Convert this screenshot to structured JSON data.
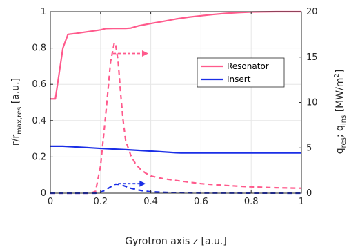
{
  "chart_data": {
    "type": "line",
    "xlabel": "Gyrotron axis z [a.u.]",
    "ylabel_left": {
      "base": "r/r",
      "sub": "max,res",
      "unit": " [a.u.]"
    },
    "ylabel_right": {
      "q1": "q",
      "sub1": "res",
      "sep": "; q",
      "sub2": "ins",
      "unit_pre": " [MW/m",
      "unit_sup": "2",
      "unit_post": "]"
    },
    "xlim": [
      0,
      1
    ],
    "ylim_left": [
      0,
      1
    ],
    "ylim_right": [
      0,
      20
    ],
    "x_ticks": [
      "0",
      "0.2",
      "0.4",
      "0.6",
      "0.8",
      "1"
    ],
    "y_left_ticks": [
      "0",
      "0.2",
      "0.4",
      "0.6",
      "0.8",
      "1"
    ],
    "y_right_ticks": [
      "0",
      "5",
      "10",
      "15",
      "20"
    ],
    "grid": true,
    "legend_position": "top-right",
    "colors": {
      "resonator": "#ff5a8c",
      "insert": "#1a2ee6",
      "grid": "#e6e6e6",
      "axis": "#262626"
    },
    "series": [
      {
        "name": "Resonator",
        "axis": "left",
        "style": "solid",
        "color": "#ff5a8c",
        "x": [
          0,
          0.02,
          0.05,
          0.07,
          0.1,
          0.15,
          0.2,
          0.22,
          0.25,
          0.3,
          0.32,
          0.35,
          0.4,
          0.45,
          0.5,
          0.55,
          0.6,
          0.65,
          0.7,
          0.75,
          0.8,
          0.85,
          0.9,
          0.95,
          1.0
        ],
        "y": [
          0.52,
          0.52,
          0.8,
          0.875,
          0.88,
          0.89,
          0.9,
          0.907,
          0.908,
          0.908,
          0.91,
          0.922,
          0.935,
          0.947,
          0.96,
          0.97,
          0.978,
          0.985,
          0.991,
          0.995,
          0.998,
          0.999,
          1.0,
          1.0,
          1.0
        ]
      },
      {
        "name": "Insert",
        "axis": "left",
        "style": "solid",
        "color": "#1a2ee6",
        "x": [
          0,
          0.05,
          0.1,
          0.2,
          0.3,
          0.4,
          0.5,
          0.52,
          0.6,
          0.8,
          1.0
        ],
        "y": [
          0.259,
          0.259,
          0.255,
          0.247,
          0.24,
          0.232,
          0.223,
          0.222,
          0.222,
          0.222,
          0.222
        ]
      },
      {
        "name": "q_res",
        "axis": "right",
        "style": "dashed",
        "color": "#ff5a8c",
        "x": [
          0,
          0.16,
          0.18,
          0.2,
          0.22,
          0.24,
          0.255,
          0.26,
          0.27,
          0.28,
          0.29,
          0.3,
          0.32,
          0.34,
          0.36,
          0.38,
          0.4,
          0.45,
          0.5,
          0.6,
          0.7,
          0.8,
          0.9,
          1.0
        ],
        "y": [
          0,
          0,
          0.2,
          3.0,
          8.5,
          14.5,
          16.6,
          16.4,
          14.5,
          11.0,
          8.0,
          5.8,
          4.2,
          3.2,
          2.6,
          2.2,
          1.9,
          1.6,
          1.4,
          1.05,
          0.85,
          0.7,
          0.6,
          0.55
        ]
      },
      {
        "name": "q_ins",
        "axis": "right",
        "style": "dashed",
        "color": "#1a2ee6",
        "x": [
          0,
          0.18,
          0.2,
          0.22,
          0.24,
          0.26,
          0.28,
          0.3,
          0.32,
          0.36,
          0.4,
          0.5,
          0.6,
          1.0
        ],
        "y": [
          0,
          0,
          0.1,
          0.35,
          0.7,
          1.0,
          0.95,
          0.75,
          0.55,
          0.3,
          0.15,
          0.05,
          0.02,
          0
        ]
      }
    ],
    "annotations": [
      {
        "kind": "arrow",
        "target_axis": "right",
        "color": "#ff5a8c",
        "x_from": 0.25,
        "x_to": 0.39,
        "y": 15.4
      },
      {
        "kind": "arrow",
        "target_axis": "right",
        "color": "#1a2ee6",
        "x_from": 0.27,
        "x_to": 0.38,
        "y": 1.05
      }
    ]
  }
}
